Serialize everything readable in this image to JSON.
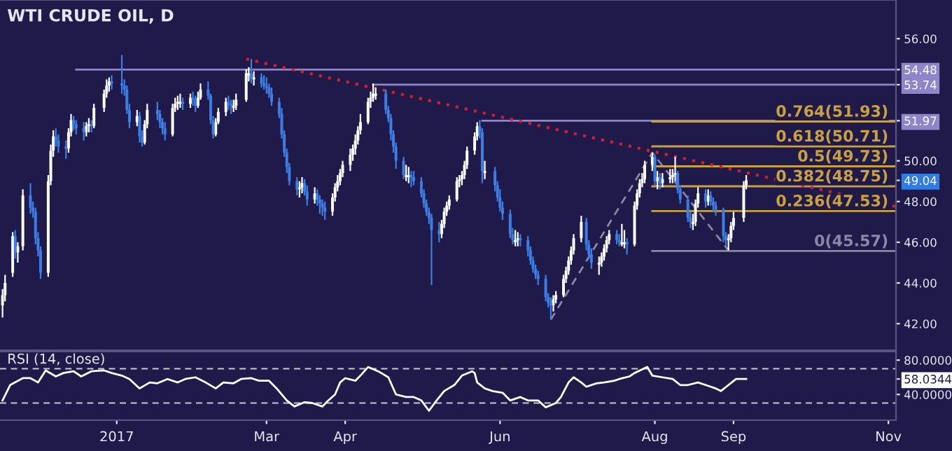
{
  "chart_data": [
    {
      "type": "candlestick",
      "title": "WTI CRUDE OIL, D",
      "xlim": [
        "2016-11-16",
        "2017-11-04"
      ],
      "ylim": [
        40.7,
        57.9
      ],
      "tick_labels": "y",
      "yticks": [
        {
          "value": 42,
          "label": "42.00"
        },
        {
          "value": 44,
          "label": "44.00"
        },
        {
          "value": 46,
          "label": "46.00"
        },
        {
          "value": 48,
          "label": "48.00"
        },
        {
          "value": 49.04,
          "label": "49.04"
        },
        {
          "value": 50,
          "label": "50.00"
        },
        {
          "value": 51.97,
          "label": "51.97"
        },
        {
          "value": 53.74,
          "label": "53.74"
        },
        {
          "value": 54.48,
          "label": "54.48"
        },
        {
          "value": 56,
          "label": "56.00"
        }
      ],
      "series": [
        {
          "type": "line",
          "color": "#8e86c9",
          "x": [
            "2016-12-16",
            "2017-11-04"
          ],
          "values": [
            54.48,
            54.48
          ]
        },
        {
          "type": "line",
          "color": "#8e86c9",
          "x": [
            "2017-04-12",
            "2017-11-04"
          ],
          "values": [
            53.74,
            53.74
          ]
        },
        {
          "type": "line",
          "color": "#8e86c9",
          "x": [
            "2017-05-25",
            "2017-11-04"
          ],
          "values": [
            51.97,
            51.97
          ]
        },
        {
          "type": "line",
          "color": "#c9a23f",
          "x": [
            "2017-07-31",
            "2017-11-04"
          ],
          "values": [
            51.93,
            51.93
          ]
        },
        {
          "type": "line",
          "color": "#c9a23f",
          "x": [
            "2017-07-31",
            "2017-11-04"
          ],
          "values": [
            50.71,
            50.71
          ]
        },
        {
          "type": "line",
          "color": "#c9a23f",
          "x": [
            "2017-07-31",
            "2017-11-04"
          ],
          "values": [
            49.73,
            49.73
          ]
        },
        {
          "type": "line",
          "color": "#c9a23f",
          "x": [
            "2017-07-31",
            "2017-11-04"
          ],
          "values": [
            48.75,
            48.75
          ]
        },
        {
          "type": "line",
          "color": "#c9a23f",
          "x": [
            "2017-07-31",
            "2017-11-04"
          ],
          "values": [
            47.53,
            47.53
          ]
        },
        {
          "type": "line",
          "color": "#8a88a8",
          "x": [
            "2017-07-31",
            "2017-11-04"
          ],
          "values": [
            45.57,
            45.57
          ]
        },
        {
          "type": "line",
          "color": "#8a88a8",
          "line_style": "dashed",
          "x": [
            "2017-06-21",
            "2017-07-31",
            "2017-08-30"
          ],
          "values": [
            42.2,
            50.4,
            45.6
          ]
        },
        {
          "type": "line",
          "color": "#d0202a",
          "line_style": "dotted",
          "x": [
            "2017-02-21",
            "2017-11-04"
          ],
          "values": [
            55.0,
            47.75
          ]
        },
        {
          "type": "candlestick",
          "color": "#ffffff",
          "x": [
            "2016-11-17",
            "2016-11-18",
            "2016-11-21",
            "2016-11-23",
            "2016-11-25",
            "2016-12-05",
            "2016-12-06",
            "2016-12-07",
            "2016-12-13",
            "2016-12-14",
            "2016-12-20",
            "2016-12-21",
            "2016-12-23",
            "2016-12-27",
            "2016-12-28",
            "2016-12-29",
            "2017-01-09",
            "2017-01-12",
            "2017-01-13",
            "2017-01-23",
            "2017-01-24",
            "2017-01-25",
            "2017-01-26",
            "2017-01-30",
            "2017-02-02",
            "2017-02-03",
            "2017-02-09",
            "2017-02-10",
            "2017-02-13",
            "2017-02-16",
            "2017-02-17",
            "2017-02-21",
            "2017-02-22",
            "2017-02-24",
            "2017-03-14",
            "2017-03-15",
            "2017-03-20",
            "2017-03-27",
            "2017-03-28",
            "2017-03-29",
            "2017-03-30",
            "2017-03-31",
            "2017-04-03",
            "2017-04-04",
            "2017-04-05",
            "2017-04-06",
            "2017-04-07",
            "2017-04-10",
            "2017-04-11",
            "2017-04-12",
            "2017-04-13",
            "2017-04-25",
            "2017-04-26",
            "2017-05-09",
            "2017-05-10",
            "2017-05-11",
            "2017-05-12",
            "2017-05-15",
            "2017-05-16",
            "2017-05-17",
            "2017-05-18",
            "2017-05-19",
            "2017-05-22",
            "2017-05-23",
            "2017-05-26",
            "2017-06-07",
            "2017-06-08",
            "2017-06-22",
            "2017-06-23",
            "2017-06-26",
            "2017-06-27",
            "2017-06-28",
            "2017-06-29",
            "2017-06-30",
            "2017-07-03",
            "2017-07-10",
            "2017-07-11",
            "2017-07-12",
            "2017-07-13",
            "2017-07-14",
            "2017-07-19",
            "2017-07-20",
            "2017-07-24",
            "2017-07-25",
            "2017-07-26",
            "2017-07-27",
            "2017-07-28",
            "2017-07-31",
            "2017-08-02",
            "2017-08-04",
            "2017-08-07",
            "2017-08-08",
            "2017-08-09",
            "2017-08-16",
            "2017-08-17",
            "2017-08-18",
            "2017-08-22",
            "2017-08-30",
            "2017-08-31",
            "2017-09-01",
            "2017-09-05",
            "2017-09-06"
          ],
          "ohlc": [
            [
              42.9,
              43.7,
              42.3,
              43.4
            ],
            [
              43.4,
              44.4,
              43.1,
              44.0
            ],
            [
              44.5,
              46.5,
              44.3,
              46.3
            ],
            [
              45.5,
              46.0,
              45.0,
              45.8
            ],
            [
              45.8,
              48.6,
              45.6,
              48.3
            ],
            [
              44.5,
              49.3,
              44.3,
              49.0
            ],
            [
              49.0,
              50.8,
              48.8,
              50.5
            ],
            [
              50.5,
              51.5,
              50.2,
              51.2
            ],
            [
              50.6,
              51.6,
              50.4,
              51.4
            ],
            [
              51.4,
              52.3,
              51.2,
              52.0
            ],
            [
              51.4,
              51.9,
              51.2,
              51.7
            ],
            [
              51.7,
              52.1,
              51.4,
              51.8
            ],
            [
              51.7,
              52.8,
              51.6,
              52.6
            ],
            [
              52.6,
              53.5,
              52.4,
              53.3
            ],
            [
              53.3,
              54.0,
              53.1,
              53.7
            ],
            [
              53.7,
              54.1,
              53.4,
              53.9
            ],
            [
              51.9,
              52.5,
              51.7,
              52.2
            ],
            [
              50.9,
              52.0,
              50.8,
              51.8
            ],
            [
              51.8,
              52.8,
              51.6,
              52.5
            ],
            [
              51.3,
              52.8,
              51.2,
              52.6
            ],
            [
              52.6,
              53.1,
              52.4,
              52.8
            ],
            [
              52.8,
              53.2,
              52.5,
              52.9
            ],
            [
              52.8,
              53.3,
              52.6,
              52.9
            ],
            [
              52.8,
              53.3,
              52.6,
              53.1
            ],
            [
              52.7,
              53.4,
              52.6,
              53.1
            ],
            [
              53.1,
              53.8,
              53.0,
              53.5
            ],
            [
              51.3,
              52.1,
              51.2,
              51.9
            ],
            [
              51.9,
              52.6,
              51.8,
              52.4
            ],
            [
              52.4,
              53.1,
              52.2,
              52.9
            ],
            [
              52.6,
              53.0,
              52.4,
              52.7
            ],
            [
              52.7,
              53.3,
              52.5,
              53.0
            ],
            [
              53.0,
              54.5,
              52.9,
              54.3
            ],
            [
              54.2,
              54.6,
              53.9,
              54.3
            ],
            [
              54.0,
              54.4,
              53.7,
              54.1
            ],
            [
              48.6,
              49.0,
              48.2,
              48.7
            ],
            [
              48.7,
              49.2,
              48.4,
              48.9
            ],
            [
              48.1,
              48.7,
              47.9,
              48.4
            ],
            [
              47.5,
              48.4,
              47.3,
              48.2
            ],
            [
              48.2,
              48.9,
              48.0,
              48.7
            ],
            [
              48.7,
              49.3,
              48.5,
              49.0
            ],
            [
              49.0,
              49.6,
              48.8,
              49.4
            ],
            [
              49.4,
              50.0,
              49.2,
              49.8
            ],
            [
              49.8,
              50.6,
              49.5,
              50.3
            ],
            [
              50.3,
              50.8,
              50.0,
              50.6
            ],
            [
              50.6,
              51.3,
              50.3,
              51.0
            ],
            [
              51.0,
              51.7,
              50.8,
              51.5
            ],
            [
              51.5,
              52.3,
              51.3,
              51.9
            ],
            [
              51.9,
              53.1,
              51.8,
              52.9
            ],
            [
              52.9,
              53.4,
              52.6,
              53.1
            ],
            [
              53.1,
              53.8,
              52.9,
              53.3
            ],
            [
              53.2,
              53.6,
              53.0,
              53.3
            ],
            [
              49.2,
              49.8,
              49.0,
              49.3
            ],
            [
              49.2,
              49.7,
              48.9,
              49.3
            ],
            [
              46.4,
              47.1,
              46.2,
              46.9
            ],
            [
              46.9,
              47.7,
              46.7,
              47.5
            ],
            [
              47.5,
              48.0,
              47.3,
              47.8
            ],
            [
              47.8,
              48.3,
              47.6,
              48.1
            ],
            [
              48.1,
              49.2,
              48.0,
              49.0
            ],
            [
              49.0,
              49.3,
              48.7,
              49.1
            ],
            [
              49.1,
              49.5,
              48.8,
              49.3
            ],
            [
              49.3,
              50.0,
              49.1,
              49.8
            ],
            [
              49.8,
              50.7,
              49.6,
              50.5
            ],
            [
              50.5,
              51.4,
              50.3,
              51.2
            ],
            [
              51.2,
              51.9,
              51.0,
              51.7
            ],
            [
              49.4,
              50.0,
              49.1,
              49.5
            ],
            [
              46.0,
              46.6,
              45.8,
              46.1
            ],
            [
              46.1,
              46.5,
              45.8,
              46.2
            ],
            [
              42.9,
              43.4,
              42.6,
              43.2
            ],
            [
              43.2,
              43.6,
              43.0,
              43.4
            ],
            [
              43.4,
              44.4,
              43.3,
              44.2
            ],
            [
              44.2,
              44.8,
              44.0,
              44.6
            ],
            [
              44.6,
              45.3,
              44.4,
              45.1
            ],
            [
              45.1,
              45.8,
              44.9,
              45.6
            ],
            [
              45.6,
              46.4,
              45.4,
              46.2
            ],
            [
              46.2,
              47.3,
              46.0,
              47.0
            ],
            [
              44.9,
              45.3,
              44.4,
              45.0
            ],
            [
              45.0,
              45.5,
              44.8,
              45.3
            ],
            [
              45.3,
              45.9,
              45.1,
              45.7
            ],
            [
              45.7,
              46.3,
              45.5,
              46.1
            ],
            [
              46.1,
              46.6,
              45.9,
              46.4
            ],
            [
              45.9,
              46.9,
              45.8,
              46.0
            ],
            [
              45.9,
              46.6,
              45.7,
              46.0
            ],
            [
              45.9,
              48.0,
              45.8,
              47.8
            ],
            [
              47.8,
              48.6,
              47.6,
              48.4
            ],
            [
              48.4,
              49.1,
              48.2,
              48.9
            ],
            [
              48.9,
              49.4,
              48.7,
              49.1
            ],
            [
              49.1,
              50.0,
              48.9,
              49.8
            ],
            [
              49.8,
              50.4,
              49.5,
              50.2
            ],
            [
              49.0,
              49.5,
              48.6,
              49.2
            ],
            [
              48.9,
              49.4,
              48.7,
              49.1
            ],
            [
              49.1,
              49.6,
              48.9,
              49.2
            ],
            [
              49.2,
              49.6,
              48.9,
              49.3
            ],
            [
              49.3,
              50.2,
              49.0,
              49.4
            ],
            [
              46.9,
              47.4,
              46.6,
              47.0
            ],
            [
              47.0,
              48.1,
              46.8,
              47.9
            ],
            [
              47.9,
              48.7,
              47.7,
              48.4
            ],
            [
              48.0,
              48.6,
              47.8,
              48.3
            ],
            [
              46.1,
              46.4,
              45.6,
              46.2
            ],
            [
              46.2,
              47.0,
              46.0,
              46.8
            ],
            [
              46.8,
              47.5,
              46.6,
              47.2
            ],
            [
              47.2,
              49.0,
              47.0,
              48.8
            ],
            [
              48.8,
              49.3,
              48.6,
              49.04
            ]
          ]
        },
        {
          "type": "candlestick",
          "color": "#3a7ee6",
          "x": [
            "2016-11-22",
            "2016-11-28",
            "2016-11-29",
            "2016-11-30",
            "2016-12-01",
            "2016-12-02",
            "2016-12-08",
            "2016-12-09",
            "2016-12-12",
            "2016-12-15",
            "2016-12-16",
            "2016-12-19",
            "2016-12-22",
            "2016-12-30",
            "2017-01-03",
            "2017-01-04",
            "2017-01-05",
            "2017-01-06",
            "2017-01-10",
            "2017-01-11",
            "2017-01-17",
            "2017-01-18",
            "2017-01-19",
            "2017-01-20",
            "2017-01-27",
            "2017-01-31",
            "2017-02-01",
            "2017-02-06",
            "2017-02-07",
            "2017-02-08",
            "2017-02-14",
            "2017-02-15",
            "2017-02-23",
            "2017-02-27",
            "2017-02-28",
            "2017-03-01",
            "2017-03-02",
            "2017-03-03",
            "2017-03-06",
            "2017-03-07",
            "2017-03-08",
            "2017-03-09",
            "2017-03-10",
            "2017-03-13",
            "2017-03-16",
            "2017-03-17",
            "2017-03-21",
            "2017-03-22",
            "2017-03-23",
            "2017-03-24",
            "2017-04-17",
            "2017-04-18",
            "2017-04-19",
            "2017-04-20",
            "2017-04-21",
            "2017-04-24",
            "2017-04-27",
            "2017-04-28",
            "2017-05-01",
            "2017-05-02",
            "2017-05-03",
            "2017-05-04",
            "2017-05-05",
            "2017-05-08",
            "2017-05-24",
            "2017-05-25",
            "2017-05-30",
            "2017-05-31",
            "2017-06-01",
            "2017-06-02",
            "2017-06-05",
            "2017-06-06",
            "2017-06-09",
            "2017-06-12",
            "2017-06-13",
            "2017-06-14",
            "2017-06-15",
            "2017-06-16",
            "2017-06-19",
            "2017-06-20",
            "2017-06-21",
            "2017-07-05",
            "2017-07-06",
            "2017-07-07",
            "2017-07-17",
            "2017-07-18",
            "2017-07-21",
            "2017-08-01",
            "2017-08-03",
            "2017-08-10",
            "2017-08-11",
            "2017-08-14",
            "2017-08-15",
            "2017-08-21",
            "2017-08-23",
            "2017-08-24",
            "2017-08-25",
            "2017-08-28",
            "2017-08-29"
          ],
          "ohlc": [
            [
              46.3,
              46.6,
              45.2,
              45.5
            ],
            [
              48.3,
              48.9,
              47.4,
              47.7
            ],
            [
              47.7,
              48.0,
              47.2,
              47.5
            ],
            [
              47.5,
              47.7,
              45.9,
              46.2
            ],
            [
              46.2,
              46.5,
              45.3,
              45.6
            ],
            [
              45.6,
              45.8,
              44.2,
              44.5
            ],
            [
              51.2,
              51.6,
              50.7,
              51.0
            ],
            [
              51.0,
              51.3,
              50.4,
              50.7
            ],
            [
              50.7,
              51.0,
              50.1,
              50.6
            ],
            [
              52.0,
              52.2,
              51.5,
              51.8
            ],
            [
              51.8,
              52.0,
              51.3,
              51.6
            ],
            [
              51.6,
              51.9,
              51.0,
              51.4
            ],
            [
              51.8,
              52.0,
              51.4,
              51.7
            ],
            [
              53.9,
              54.2,
              53.5,
              53.8
            ],
            [
              53.8,
              55.2,
              53.3,
              53.7
            ],
            [
              53.7,
              54.0,
              53.2,
              53.5
            ],
            [
              53.5,
              53.7,
              52.3,
              52.5
            ],
            [
              52.5,
              52.8,
              51.6,
              51.9
            ],
            [
              52.2,
              52.4,
              50.9,
              51.2
            ],
            [
              51.2,
              51.5,
              50.7,
              50.9
            ],
            [
              52.5,
              52.9,
              52.0,
              52.3
            ],
            [
              52.3,
              52.5,
              51.6,
              51.9
            ],
            [
              51.9,
              52.1,
              51.3,
              51.6
            ],
            [
              51.6,
              51.9,
              51.0,
              51.3
            ],
            [
              52.9,
              53.1,
              52.5,
              52.8
            ],
            [
              53.1,
              53.4,
              52.7,
              53.0
            ],
            [
              53.0,
              53.2,
              52.4,
              52.7
            ],
            [
              53.5,
              53.9,
              53.0,
              53.2
            ],
            [
              53.2,
              53.3,
              51.8,
              52.0
            ],
            [
              52.0,
              52.2,
              51.1,
              51.3
            ],
            [
              52.9,
              53.2,
              52.5,
              52.8
            ],
            [
              52.8,
              53.0,
              52.3,
              52.7
            ],
            [
              54.3,
              55.0,
              53.8,
              54.0
            ],
            [
              54.1,
              54.3,
              53.6,
              53.8
            ],
            [
              53.8,
              54.2,
              53.5,
              53.7
            ],
            [
              53.7,
              54.1,
              53.3,
              53.6
            ],
            [
              53.6,
              53.8,
              53.1,
              53.3
            ],
            [
              53.3,
              53.6,
              52.7,
              52.9
            ],
            [
              52.9,
              53.1,
              52.1,
              52.3
            ],
            [
              52.3,
              52.6,
              51.1,
              51.3
            ],
            [
              51.3,
              51.5,
              50.2,
              50.4
            ],
            [
              50.4,
              50.6,
              49.4,
              49.7
            ],
            [
              49.7,
              49.9,
              48.8,
              49.0
            ],
            [
              49.0,
              49.2,
              48.3,
              48.6
            ],
            [
              48.9,
              49.1,
              48.3,
              48.5
            ],
            [
              48.5,
              48.8,
              47.8,
              48.1
            ],
            [
              48.4,
              48.6,
              47.8,
              48.1
            ],
            [
              48.1,
              48.3,
              47.4,
              47.9
            ],
            [
              47.9,
              48.1,
              47.3,
              47.7
            ],
            [
              47.7,
              48.0,
              47.1,
              47.5
            ],
            [
              53.3,
              53.5,
              52.3,
              52.5
            ],
            [
              52.5,
              52.7,
              51.9,
              52.1
            ],
            [
              52.1,
              52.3,
              51.0,
              51.3
            ],
            [
              51.3,
              51.5,
              50.4,
              50.7
            ],
            [
              50.7,
              50.9,
              49.6,
              50.0
            ],
            [
              50.0,
              50.2,
              49.1,
              49.3
            ],
            [
              49.3,
              49.5,
              48.7,
              49.2
            ],
            [
              49.2,
              49.5,
              48.8,
              49.0
            ],
            [
              49.0,
              49.2,
              48.2,
              48.4
            ],
            [
              48.4,
              48.6,
              47.7,
              47.9
            ],
            [
              47.9,
              48.1,
              47.3,
              47.5
            ],
            [
              47.5,
              47.7,
              46.9,
              47.2
            ],
            [
              47.2,
              47.4,
              43.9,
              46.6
            ],
            [
              46.6,
              47.0,
              46.0,
              46.4
            ],
            [
              51.7,
              52.0,
              51.1,
              51.4
            ],
            [
              51.4,
              51.6,
              48.9,
              49.5
            ],
            [
              49.5,
              49.7,
              48.5,
              48.8
            ],
            [
              48.8,
              49.0,
              48.0,
              48.2
            ],
            [
              48.2,
              48.6,
              47.5,
              47.7
            ],
            [
              47.7,
              48.0,
              47.1,
              47.4
            ],
            [
              47.4,
              47.6,
              46.2,
              46.4
            ],
            [
              46.4,
              46.7,
              45.9,
              46.1
            ],
            [
              46.2,
              46.4,
              45.8,
              46.1
            ],
            [
              46.1,
              46.3,
              45.3,
              45.6
            ],
            [
              45.6,
              45.8,
              44.9,
              45.1
            ],
            [
              45.1,
              45.3,
              44.5,
              44.7
            ],
            [
              44.7,
              44.9,
              44.2,
              44.4
            ],
            [
              44.4,
              44.6,
              43.9,
              44.2
            ],
            [
              44.2,
              44.4,
              43.1,
              43.3
            ],
            [
              43.3,
              43.5,
              42.8,
              43.0
            ],
            [
              43.0,
              43.3,
              42.2,
              42.9
            ],
            [
              47.0,
              47.2,
              45.6,
              45.9
            ],
            [
              45.9,
              46.1,
              45.2,
              45.4
            ],
            [
              45.4,
              45.7,
              44.7,
              45.0
            ],
            [
              46.4,
              46.6,
              45.9,
              46.1
            ],
            [
              46.1,
              46.4,
              45.8,
              46.0
            ],
            [
              46.0,
              46.2,
              45.4,
              45.9
            ],
            [
              50.2,
              50.3,
              48.8,
              49.0
            ],
            [
              49.2,
              49.4,
              48.6,
              48.9
            ],
            [
              49.4,
              49.5,
              48.4,
              48.6
            ],
            [
              48.6,
              48.8,
              47.9,
              48.1
            ],
            [
              48.1,
              48.3,
              47.0,
              47.2
            ],
            [
              47.2,
              47.5,
              46.7,
              47.0
            ],
            [
              48.4,
              48.6,
              47.7,
              48.0
            ],
            [
              48.3,
              48.5,
              47.8,
              48.0
            ],
            [
              48.0,
              48.2,
              47.5,
              47.8
            ],
            [
              47.8,
              48.0,
              47.3,
              47.6
            ],
            [
              47.6,
              47.7,
              46.0,
              46.3
            ],
            [
              46.3,
              46.5,
              45.8,
              46.1
            ]
          ]
        }
      ],
      "annotations": [
        {
          "text": "0.764(51.93)",
          "x": "2017-11-01",
          "y": 51.93
        },
        {
          "text": "0.618(50.71)",
          "x": "2017-11-01",
          "y": 50.71
        },
        {
          "text": "0.5(49.73)",
          "x": "2017-11-01",
          "y": 49.73
        },
        {
          "text": "0.382(48.75)",
          "x": "2017-11-01",
          "y": 48.75
        },
        {
          "text": "0.236(47.53)",
          "x": "2017-11-01",
          "y": 47.53
        },
        {
          "text": "0(45.57)",
          "x": "2017-11-01",
          "y": 45.57
        }
      ]
    },
    {
      "type": "line",
      "title": "RSI (14, close)",
      "xlim": [
        "2016-11-16",
        "2017-11-04"
      ],
      "ylim": [
        10,
        90
      ],
      "yticks": [
        {
          "value": 80,
          "label": "80.0000"
        },
        {
          "value": 58.0344,
          "label": "58.0344"
        },
        {
          "value": 40,
          "label": "40.0000"
        }
      ],
      "xticks": [
        {
          "value": "2017-01-01",
          "label": "2017"
        },
        {
          "value": "2017-03-01",
          "label": "Mar"
        },
        {
          "value": "2017-04-01",
          "label": "Apr"
        },
        {
          "value": "2017-06-01",
          "label": "Jun"
        },
        {
          "value": "2017-08-01",
          "label": "Aug"
        },
        {
          "value": "2017-09-01",
          "label": "Sep"
        },
        {
          "value": "2017-11-01",
          "label": "Nov"
        }
      ],
      "ref_lines": [
        {
          "axis": "y",
          "value": 70,
          "line_style": "dashed",
          "color": "#c8c8d8"
        },
        {
          "axis": "y",
          "value": 30,
          "line_style": "dashed",
          "color": "#c8c8d8"
        }
      ],
      "series": [
        {
          "color": "#ffffff",
          "x": [
            "2016-11-17",
            "2016-11-20",
            "2016-11-25",
            "2016-11-28",
            "2016-12-01",
            "2016-12-04",
            "2016-12-08",
            "2016-12-11",
            "2016-12-15",
            "2016-12-18",
            "2016-12-22",
            "2016-12-27",
            "2016-12-30",
            "2017-01-03",
            "2017-01-06",
            "2017-01-10",
            "2017-01-14",
            "2017-01-17",
            "2017-01-21",
            "2017-01-25",
            "2017-01-28",
            "2017-02-01",
            "2017-02-05",
            "2017-02-09",
            "2017-02-12",
            "2017-02-16",
            "2017-02-19",
            "2017-02-23",
            "2017-02-26",
            "2017-03-02",
            "2017-03-05",
            "2017-03-09",
            "2017-03-12",
            "2017-03-16",
            "2017-03-19",
            "2017-03-23",
            "2017-03-25",
            "2017-03-28",
            "2017-03-30",
            "2017-04-01",
            "2017-04-05",
            "2017-04-07",
            "2017-04-10",
            "2017-04-14",
            "2017-04-18",
            "2017-04-21",
            "2017-04-25",
            "2017-04-28",
            "2017-05-01",
            "2017-05-04",
            "2017-05-07",
            "2017-05-10",
            "2017-05-14",
            "2017-05-17",
            "2017-05-21",
            "2017-05-22",
            "2017-05-23",
            "2017-05-26",
            "2017-05-29",
            "2017-06-02",
            "2017-06-05",
            "2017-06-09",
            "2017-06-12",
            "2017-06-16",
            "2017-06-19",
            "2017-06-23",
            "2017-06-25",
            "2017-06-28",
            "2017-06-30",
            "2017-07-03",
            "2017-07-05",
            "2017-07-09",
            "2017-07-12",
            "2017-07-16",
            "2017-07-18",
            "2017-07-22",
            "2017-07-24",
            "2017-07-29",
            "2017-07-31",
            "2017-08-04",
            "2017-08-08",
            "2017-08-11",
            "2017-08-14",
            "2017-08-18",
            "2017-08-21",
            "2017-08-25",
            "2017-08-27",
            "2017-08-30",
            "2017-09-02",
            "2017-09-06"
          ],
          "values": [
            33,
            51,
            59,
            59,
            54,
            68,
            61,
            65,
            67,
            61,
            67,
            68,
            65,
            62,
            58,
            47,
            54,
            53,
            58,
            54,
            58,
            60,
            54,
            47,
            54,
            53,
            58,
            59,
            56,
            56,
            47,
            33,
            26,
            31,
            30,
            26,
            32,
            40,
            54,
            59,
            56,
            62,
            72,
            67,
            60,
            40,
            37,
            37,
            33,
            21,
            33,
            44,
            51,
            62,
            67,
            65,
            54,
            47,
            44,
            42,
            33,
            37,
            33,
            33,
            25,
            30,
            37,
            54,
            60,
            54,
            49,
            53,
            54,
            56,
            58,
            61,
            65,
            72,
            62,
            60,
            58,
            51,
            51,
            54,
            51,
            47,
            44,
            51,
            58,
            58.0344
          ]
        }
      ]
    }
  ]
}
